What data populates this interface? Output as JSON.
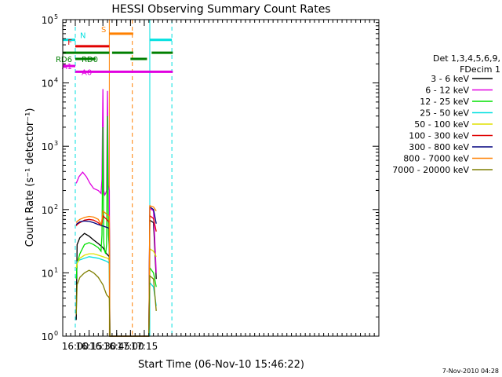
{
  "chart_data": {
    "type": "line",
    "title": "HESSI Observing Summary Count Rates",
    "xlabel": "Start Time (06-Nov-10 15:46:22)",
    "ylabel": "Count Rate (s⁻¹ detector⁻¹)",
    "y_scale": "log",
    "ylim": [
      1,
      100000
    ],
    "xlim_minutes_of_day": [
      946.37,
      1290
    ],
    "x_ticks": [
      {
        "label": "16:00",
        "t": 960
      },
      {
        "label": "16:15",
        "t": 975
      },
      {
        "label": "16:30",
        "t": 990
      },
      {
        "label": "16:45",
        "t": 1005
      },
      {
        "label": "17:00",
        "t": 1020
      },
      {
        "label": "17:15",
        "t": 1035
      }
    ],
    "y_ticks": [
      {
        "label": "10",
        "sup": "0",
        "v": 1
      },
      {
        "label": "10",
        "sup": "1",
        "v": 10
      },
      {
        "label": "10",
        "sup": "2",
        "v": 100
      },
      {
        "label": "10",
        "sup": "3",
        "v": 1000
      },
      {
        "label": "10",
        "sup": "4",
        "v": 10000
      },
      {
        "label": "10",
        "sup": "5",
        "v": 100000
      }
    ],
    "legend": {
      "placement": "right",
      "header": [
        "Det 1,3,4,5,6,9,",
        "FDecim 1"
      ],
      "entries": [
        {
          "label": "3 - 6 keV",
          "color": "#000000"
        },
        {
          "label": "6 - 12 keV",
          "color": "#e000e0"
        },
        {
          "label": "12 - 25 keV",
          "color": "#00e000"
        },
        {
          "label": "25 - 50 keV",
          "color": "#00e0e0"
        },
        {
          "label": "50 - 100 keV",
          "color": "#e0e000"
        },
        {
          "label": "100 - 300 keV",
          "color": "#e00000"
        },
        {
          "label": "300 - 800 keV",
          "color": "#00007f"
        },
        {
          "label": "800 - 7000 keV",
          "color": "#ff8000"
        },
        {
          "label": "7000 - 20000 keV",
          "color": "#7f7f00"
        }
      ]
    },
    "series": [
      {
        "name": "3 - 6 keV",
        "color": "#000000",
        "x": [
          961,
          962,
          965,
          970,
          975,
          980,
          985,
          990,
          994,
          997,
          997.5,
          1040,
          1041,
          1045,
          1048
        ],
        "y": [
          1.8,
          28,
          36,
          42,
          38,
          33,
          29,
          25,
          20,
          18,
          1,
          1,
          68,
          62,
          8
        ]
      },
      {
        "name": "6 - 12 keV",
        "color": "#e000e0",
        "x": [
          961,
          962,
          964,
          968,
          972,
          976,
          980,
          985,
          988,
          989,
          990,
          991,
          992,
          993,
          994,
          995,
          996,
          997,
          997.5,
          1040,
          1041,
          1045,
          1048
        ],
        "y": [
          260,
          280,
          330,
          390,
          330,
          260,
          215,
          200,
          180,
          300,
          8000,
          200,
          170,
          180,
          200,
          7500,
          240,
          200,
          1,
          1,
          105,
          95,
          10
        ]
      },
      {
        "name": "12 - 25 keV",
        "color": "#00e000",
        "x": [
          961,
          962,
          965,
          970,
          975,
          980,
          985,
          988,
          989,
          990,
          991,
          992,
          993,
          994,
          995,
          996,
          997,
          997.5,
          1040,
          1041,
          1045,
          1048
        ],
        "y": [
          8,
          14,
          20,
          28,
          30,
          28,
          25,
          22,
          40,
          2000,
          30,
          22,
          20,
          28,
          3000,
          40,
          25,
          1,
          1,
          12,
          10,
          6
        ]
      },
      {
        "name": "25 - 50 keV",
        "color": "#00e0e0",
        "x": [
          961,
          962,
          965,
          970,
          975,
          980,
          985,
          990,
          995,
          997,
          997.5,
          1040,
          1041,
          1045,
          1048
        ],
        "y": [
          14,
          15,
          16,
          17,
          18,
          17.5,
          17,
          16,
          15,
          14,
          1,
          1,
          7,
          6,
          3
        ]
      },
      {
        "name": "50 - 100 keV",
        "color": "#e0e000",
        "x": [
          961,
          962,
          965,
          970,
          975,
          980,
          985,
          990,
          995,
          997,
          997.5,
          1040,
          1041,
          1045,
          1048
        ],
        "y": [
          12,
          14,
          17,
          19,
          20,
          20,
          19,
          18,
          17,
          16,
          1,
          1,
          24,
          22,
          18
        ]
      },
      {
        "name": "100 - 300 keV",
        "color": "#e00000",
        "x": [
          961,
          962,
          965,
          970,
          975,
          980,
          985,
          988,
          989,
          990,
          992,
          994,
          996,
          997,
          997.5,
          1040,
          1041,
          1045,
          1048
        ],
        "y": [
          55,
          58,
          62,
          68,
          70,
          68,
          62,
          56,
          62,
          80,
          75,
          70,
          65,
          62,
          1,
          1,
          80,
          72,
          45
        ]
      },
      {
        "name": "300 - 800 keV",
        "color": "#00007f",
        "x": [
          961,
          962,
          965,
          970,
          975,
          980,
          985,
          990,
          995,
          997,
          997.5,
          1040,
          1041,
          1045,
          1048
        ],
        "y": [
          58,
          60,
          64,
          66,
          65,
          62,
          58,
          55,
          52,
          50,
          1,
          1,
          110,
          100,
          60
        ]
      },
      {
        "name": "800 - 7000 keV",
        "color": "#ff8000",
        "x": [
          961,
          962,
          965,
          970,
          975,
          980,
          985,
          988,
          989,
          990,
          992,
          994,
          996,
          997,
          997.5,
          1040,
          1041,
          1045,
          1048
        ],
        "y": [
          62,
          65,
          70,
          75,
          78,
          76,
          70,
          58,
          70,
          95,
          90,
          85,
          80,
          78,
          1,
          1,
          115,
          110,
          95
        ]
      },
      {
        "name": "7000 - 20000 keV",
        "color": "#7f7f00",
        "x": [
          961,
          962,
          965,
          970,
          975,
          980,
          985,
          990,
          994,
          996,
          997,
          997.5,
          1040,
          1041,
          1045,
          1048
        ],
        "y": [
          2.2,
          6.5,
          8.5,
          10,
          11,
          10,
          8.5,
          6.5,
          4.5,
          4.2,
          4.0,
          1,
          1,
          9,
          8,
          2.5
        ]
      }
    ],
    "vertical_markers": [
      {
        "t": 960,
        "color": "#00e0e0",
        "style": "dashed"
      },
      {
        "t": 997,
        "color": "#ff8000",
        "style": "solid"
      },
      {
        "t": 1022,
        "color": "#ff8000",
        "style": "dashed"
      },
      {
        "t": 1041,
        "color": "#00e0e0",
        "style": "solid"
      },
      {
        "t": 1065,
        "color": "#00e0e0",
        "style": "dashed"
      }
    ],
    "flag_bars": [
      {
        "label": "S",
        "color": "#ff8000",
        "level": 60000,
        "segments": [
          [
            997,
            1023
          ]
        ]
      },
      {
        "label": "N",
        "color": "#00e0e0",
        "level": 48000,
        "segments": [
          [
            946.4,
            960
          ],
          [
            1041,
            1065
          ]
        ]
      },
      {
        "label": "F",
        "color": "#e00000",
        "level": 38000,
        "segments": [
          [
            960,
            997
          ]
        ]
      },
      {
        "label": "RD0",
        "color": "#007f00",
        "level": 30000,
        "segments": [
          [
            946.4,
            997
          ],
          [
            1000,
            1023
          ],
          [
            1043,
            1066
          ]
        ]
      },
      {
        "label": "RD6",
        "color": "#007f00",
        "level": 24000,
        "segments": [
          [
            960,
            982
          ],
          [
            1020,
            1038
          ]
        ]
      },
      {
        "label": "A1",
        "color": "#e000e0",
        "level": 18500,
        "segments": [
          [
            946.4,
            960
          ]
        ]
      },
      {
        "label": "A0",
        "color": "#e000e0",
        "level": 15000,
        "segments": [
          [
            960,
            1066
          ]
        ]
      }
    ],
    "footer_timestamp": "7-Nov-2010 04:28"
  }
}
